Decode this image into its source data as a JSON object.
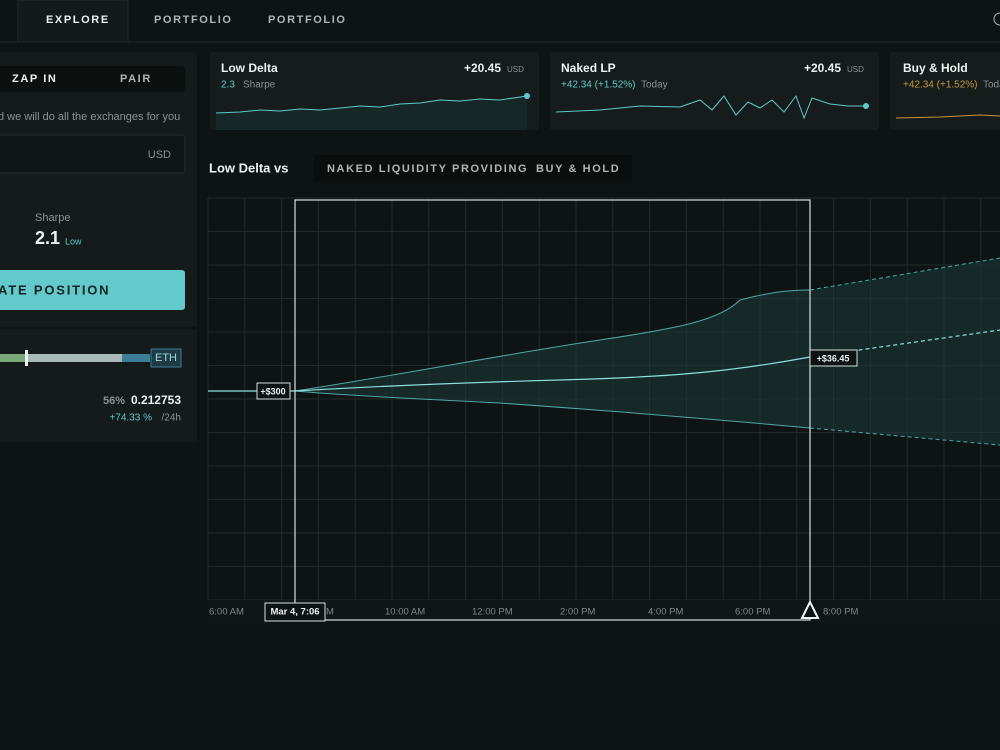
{
  "nav": {
    "tabs": [
      "EXPLORE",
      "PORTFOLIO",
      "PORTFOLIO"
    ]
  },
  "position_panel": {
    "tabs": [
      "ZAP IN",
      "PAIR"
    ],
    "hint": "d we will do all the exchanges for you",
    "currency": "USD",
    "sharpe_label": "Sharpe",
    "sharpe_value": "2.1",
    "sharpe_rating": "Low",
    "button": "ATE POSITION",
    "token": "ETH",
    "share": "56%",
    "amount": "0.212753",
    "change": "+74.33 %",
    "period": "/24h"
  },
  "cards": [
    {
      "title": "Low Delta",
      "value": "+20.45",
      "unit": "USD",
      "sharpe_value": "2.3",
      "sharpe_label": "Sharpe"
    },
    {
      "title": "Naked LP",
      "value": "+20.45",
      "unit": "USD",
      "change": "+42.34 (+1.52%)",
      "period": "Today"
    },
    {
      "title": "Buy & Hold",
      "change": "+42.34 (+1.52%)",
      "period": "Toda"
    }
  ],
  "comparison": {
    "title": "Low Delta vs",
    "options": [
      "NAKED LIQUIDITY PROVIDING",
      "BUY & HOLD"
    ],
    "start_label": "+$300",
    "end_label": "+$36.45",
    "cursor_label": "Mar 4, 7:06",
    "x_labels": [
      "6:00 AM",
      "M",
      "10:00 AM",
      "12:00 PM",
      "2:00 PM",
      "4:00 PM",
      "6:00 PM",
      "8:00 PM"
    ]
  }
}
